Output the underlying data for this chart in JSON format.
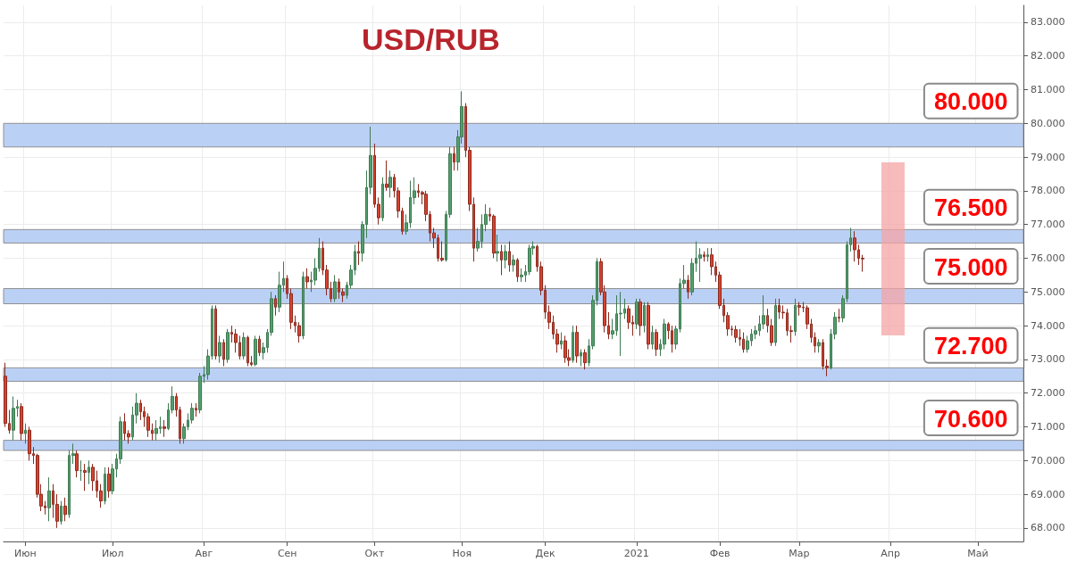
{
  "chart_data": {
    "type": "candlestick",
    "title": "USD/RUB",
    "categories": [
      null,
      null,
      null,
      null,
      null,
      "Июн",
      null,
      null,
      null,
      null,
      null,
      null,
      null,
      null,
      null,
      null,
      null,
      null,
      null,
      null,
      null,
      null,
      null,
      null,
      null,
      null,
      null,
      "Июл",
      null,
      null,
      null,
      null,
      null,
      null,
      null,
      null,
      null,
      null,
      null,
      null,
      null,
      null,
      null,
      null,
      null,
      null,
      null,
      null,
      null,
      null,
      "Авг",
      null,
      null,
      null,
      null,
      null,
      null,
      null,
      null,
      null,
      null,
      null,
      null,
      null,
      null,
      null,
      null,
      null,
      null,
      null,
      null,
      "Сен",
      null,
      null,
      null,
      null,
      null,
      null,
      null,
      null,
      null,
      null,
      null,
      null,
      null,
      null,
      null,
      null,
      null,
      null,
      null,
      null,
      null,
      "Окт",
      null,
      null,
      null,
      null,
      null,
      null,
      null,
      null,
      null,
      null,
      null,
      null,
      null,
      null,
      null,
      null,
      null,
      null,
      null,
      null,
      null,
      "Ноя",
      null,
      null,
      null,
      null,
      null,
      null,
      null,
      null,
      null,
      null,
      null,
      null,
      null,
      null,
      null,
      null,
      null,
      null,
      null,
      null,
      "Дек",
      null,
      null,
      null,
      null,
      null,
      null,
      null,
      null,
      null,
      null,
      null,
      null,
      null,
      null,
      null,
      null,
      null,
      null,
      null,
      null,
      null,
      null,
      "2021",
      null,
      null,
      null,
      null,
      null,
      null,
      null,
      null,
      null,
      null,
      null,
      null,
      null,
      null,
      null,
      null,
      null,
      null,
      null,
      null,
      "Фев",
      null,
      null,
      null,
      null,
      null,
      null,
      null,
      null,
      null,
      null,
      null,
      null,
      null,
      null,
      null,
      null,
      null,
      null,
      null,
      "Мар",
      null,
      null,
      null,
      null,
      null,
      null,
      null,
      null,
      null,
      null,
      null,
      null,
      null,
      null,
      null,
      null,
      null,
      null,
      null,
      null,
      null,
      null,
      "Апр",
      null,
      null,
      null,
      null,
      null,
      null,
      null,
      null,
      null,
      null,
      null,
      null,
      null,
      null,
      null,
      null,
      null,
      null,
      null,
      null,
      null,
      "Май",
      null,
      null,
      null,
      null,
      null,
      null,
      null,
      null,
      null,
      null,
      null
    ],
    "ohlc": [
      [
        72.5,
        72.9,
        71.0,
        71.1
      ],
      [
        71.1,
        71.5,
        70.8,
        70.9
      ],
      [
        70.9,
        71.9,
        70.6,
        71.55
      ],
      [
        71.55,
        71.8,
        71.3,
        71.6
      ],
      [
        71.6,
        71.7,
        70.6,
        70.8
      ],
      [
        70.8,
        71.1,
        70.5,
        70.9
      ],
      [
        70.9,
        71.0,
        70.0,
        70.2
      ],
      [
        70.2,
        70.4,
        69.9,
        70.15
      ],
      [
        70.15,
        70.2,
        68.9,
        69.0
      ],
      [
        69.0,
        69.3,
        68.5,
        68.65
      ],
      [
        68.65,
        68.8,
        68.4,
        68.6
      ],
      [
        68.6,
        69.5,
        68.2,
        69.1
      ],
      [
        69.1,
        69.3,
        68.3,
        68.7
      ],
      [
        68.7,
        69.0,
        68.0,
        68.2
      ],
      [
        68.2,
        68.8,
        68.1,
        68.65
      ],
      [
        68.65,
        68.9,
        68.2,
        68.4
      ],
      [
        68.4,
        70.3,
        68.3,
        70.15
      ],
      [
        70.15,
        70.5,
        69.9,
        70.2
      ],
      [
        70.2,
        70.3,
        69.5,
        69.7
      ],
      [
        69.7,
        70.0,
        69.4,
        69.7
      ],
      [
        69.7,
        69.9,
        69.1,
        69.65
      ],
      [
        69.65,
        70.0,
        69.3,
        69.8
      ],
      [
        69.8,
        69.9,
        69.1,
        69.4
      ],
      [
        69.4,
        69.7,
        68.9,
        69.1
      ],
      [
        69.1,
        69.3,
        68.6,
        68.8
      ],
      [
        68.8,
        69.8,
        68.7,
        69.6
      ],
      [
        69.6,
        69.8,
        68.9,
        69.1
      ],
      [
        69.1,
        69.9,
        69.0,
        69.75
      ],
      [
        69.75,
        70.2,
        69.5,
        70.05
      ],
      [
        70.05,
        71.3,
        69.9,
        71.15
      ],
      [
        71.15,
        71.4,
        70.6,
        70.8
      ],
      [
        70.8,
        70.9,
        70.5,
        70.7
      ],
      [
        70.7,
        71.6,
        70.6,
        71.35
      ],
      [
        71.35,
        72.0,
        71.1,
        71.7
      ],
      [
        71.7,
        71.8,
        71.2,
        71.45
      ],
      [
        71.45,
        71.6,
        71.0,
        71.3
      ],
      [
        71.3,
        71.4,
        70.7,
        70.9
      ],
      [
        70.9,
        71.1,
        70.6,
        70.8
      ],
      [
        70.8,
        71.2,
        70.6,
        70.95
      ],
      [
        70.95,
        71.3,
        70.8,
        71.0
      ],
      [
        71.0,
        71.2,
        70.7,
        70.95
      ],
      [
        70.95,
        71.7,
        70.9,
        71.5
      ],
      [
        71.5,
        72.2,
        71.4,
        71.9
      ],
      [
        71.9,
        72.0,
        71.3,
        71.5
      ],
      [
        71.5,
        71.6,
        70.5,
        70.65
      ],
      [
        70.65,
        71.1,
        70.5,
        71.0
      ],
      [
        71.0,
        71.4,
        70.9,
        71.2
      ],
      [
        71.2,
        71.7,
        71.1,
        71.55
      ],
      [
        71.55,
        71.7,
        71.3,
        71.5
      ],
      [
        71.5,
        72.6,
        71.4,
        72.5
      ],
      [
        72.5,
        72.8,
        72.3,
        72.55
      ],
      [
        72.55,
        73.3,
        72.4,
        73.1
      ],
      [
        73.1,
        74.6,
        73.0,
        74.5
      ],
      [
        74.5,
        74.6,
        73.0,
        73.1
      ],
      [
        73.1,
        73.7,
        72.9,
        73.5
      ],
      [
        73.5,
        73.6,
        72.8,
        73.0
      ],
      [
        73.0,
        73.9,
        72.9,
        73.8
      ],
      [
        73.8,
        74.0,
        73.5,
        73.75
      ],
      [
        73.75,
        73.9,
        73.2,
        73.5
      ],
      [
        73.5,
        73.7,
        73.0,
        73.1
      ],
      [
        73.1,
        73.8,
        73.0,
        73.65
      ],
      [
        73.65,
        73.7,
        72.8,
        72.9
      ],
      [
        72.9,
        73.1,
        72.8,
        72.85
      ],
      [
        72.85,
        73.7,
        72.8,
        73.6
      ],
      [
        73.6,
        73.7,
        73.1,
        73.2
      ],
      [
        73.2,
        73.5,
        73.0,
        73.35
      ],
      [
        73.35,
        73.9,
        73.2,
        73.8
      ],
      [
        73.8,
        75.0,
        73.7,
        74.8
      ],
      [
        74.8,
        74.9,
        74.3,
        74.55
      ],
      [
        74.55,
        75.6,
        74.4,
        75.2
      ],
      [
        75.2,
        75.9,
        75.0,
        75.4
      ],
      [
        75.4,
        75.5,
        74.8,
        74.95
      ],
      [
        74.95,
        75.1,
        73.9,
        74.1
      ],
      [
        74.1,
        74.3,
        73.8,
        74.0
      ],
      [
        74.0,
        74.1,
        73.5,
        73.7
      ],
      [
        73.7,
        75.6,
        73.6,
        75.45
      ],
      [
        75.45,
        75.7,
        75.1,
        75.3
      ],
      [
        75.3,
        75.6,
        75.0,
        75.35
      ],
      [
        75.35,
        76.0,
        75.2,
        75.7
      ],
      [
        75.7,
        76.6,
        75.6,
        76.3
      ],
      [
        76.3,
        76.5,
        75.5,
        75.65
      ],
      [
        75.65,
        75.8,
        74.9,
        75.1
      ],
      [
        75.1,
        75.3,
        74.7,
        74.8
      ],
      [
        74.8,
        75.5,
        74.7,
        75.3
      ],
      [
        75.3,
        75.4,
        74.8,
        75.0
      ],
      [
        75.0,
        75.1,
        74.7,
        74.9
      ],
      [
        74.9,
        75.3,
        74.8,
        75.2
      ],
      [
        75.2,
        75.8,
        75.1,
        75.65
      ],
      [
        75.65,
        76.4,
        75.5,
        76.2
      ],
      [
        76.2,
        76.5,
        75.8,
        76.15
      ],
      [
        76.15,
        77.1,
        75.9,
        77.0
      ],
      [
        77.0,
        78.6,
        76.6,
        78.1
      ],
      [
        78.1,
        79.9,
        77.9,
        79.05
      ],
      [
        79.05,
        79.4,
        77.5,
        77.6
      ],
      [
        77.6,
        77.8,
        77.0,
        77.2
      ],
      [
        77.2,
        78.4,
        77.1,
        78.2
      ],
      [
        78.2,
        78.9,
        78.0,
        78.1
      ],
      [
        78.1,
        78.6,
        77.8,
        78.4
      ],
      [
        78.4,
        78.5,
        77.8,
        78.0
      ],
      [
        78.0,
        78.1,
        77.2,
        77.4
      ],
      [
        77.4,
        77.5,
        76.7,
        76.8
      ],
      [
        76.8,
        77.3,
        76.7,
        77.05
      ],
      [
        77.05,
        78.3,
        76.9,
        77.8
      ],
      [
        77.8,
        78.4,
        77.6,
        78.0
      ],
      [
        78.0,
        78.2,
        77.8,
        77.95
      ],
      [
        77.95,
        78.0,
        77.6,
        77.9
      ],
      [
        77.9,
        78.0,
        77.1,
        77.3
      ],
      [
        77.3,
        77.4,
        76.5,
        76.75
      ],
      [
        76.75,
        76.9,
        76.3,
        76.6
      ],
      [
        76.6,
        76.7,
        75.9,
        76.0
      ],
      [
        76.0,
        76.5,
        75.9,
        75.95
      ],
      [
        75.95,
        77.4,
        75.9,
        77.3
      ],
      [
        77.3,
        79.3,
        77.2,
        79.1
      ],
      [
        79.1,
        79.3,
        78.6,
        78.85
      ],
      [
        78.85,
        79.8,
        78.6,
        79.6
      ],
      [
        79.6,
        80.95,
        79.4,
        80.5
      ],
      [
        80.5,
        80.6,
        79.0,
        79.2
      ],
      [
        79.2,
        79.3,
        77.4,
        77.6
      ],
      [
        77.6,
        77.8,
        75.9,
        76.3
      ],
      [
        76.3,
        76.9,
        76.2,
        76.5
      ],
      [
        76.5,
        77.3,
        76.3,
        77.0
      ],
      [
        77.0,
        77.6,
        76.8,
        77.3
      ],
      [
        77.3,
        77.5,
        77.1,
        77.25
      ],
      [
        77.25,
        77.3,
        76.0,
        76.15
      ],
      [
        76.15,
        76.7,
        75.9,
        76.2
      ],
      [
        76.2,
        76.4,
        75.5,
        75.95
      ],
      [
        75.95,
        76.4,
        75.7,
        76.2
      ],
      [
        76.2,
        76.5,
        75.6,
        75.8
      ],
      [
        75.8,
        76.1,
        75.6,
        75.95
      ],
      [
        75.95,
        76.0,
        75.3,
        75.45
      ],
      [
        75.45,
        75.7,
        75.3,
        75.5
      ],
      [
        75.5,
        75.8,
        75.3,
        75.6
      ],
      [
        75.6,
        76.4,
        75.5,
        76.3
      ],
      [
        76.3,
        76.5,
        76.1,
        76.35
      ],
      [
        76.35,
        76.4,
        75.6,
        75.75
      ],
      [
        75.75,
        75.9,
        74.9,
        75.05
      ],
      [
        75.05,
        75.2,
        74.2,
        74.4
      ],
      [
        74.4,
        74.6,
        73.9,
        74.1
      ],
      [
        74.1,
        74.3,
        73.6,
        73.75
      ],
      [
        73.75,
        73.9,
        73.2,
        73.45
      ],
      [
        73.45,
        73.8,
        73.3,
        73.55
      ],
      [
        73.55,
        73.7,
        72.9,
        73.05
      ],
      [
        73.05,
        73.3,
        72.8,
        72.97
      ],
      [
        72.97,
        74.0,
        72.9,
        73.8
      ],
      [
        73.8,
        74.0,
        72.9,
        73.1
      ],
      [
        73.1,
        73.3,
        72.8,
        73.2
      ],
      [
        73.2,
        73.3,
        72.7,
        72.9
      ],
      [
        72.9,
        73.6,
        72.8,
        73.4
      ],
      [
        73.4,
        74.9,
        73.3,
        74.75
      ],
      [
        74.75,
        76.0,
        74.6,
        75.9
      ],
      [
        75.9,
        76.0,
        74.9,
        75.0
      ],
      [
        75.0,
        75.2,
        73.8,
        74.0
      ],
      [
        74.0,
        74.4,
        73.6,
        73.75
      ],
      [
        73.75,
        74.2,
        73.6,
        73.85
      ],
      [
        73.85,
        74.9,
        73.7,
        74.35
      ],
      [
        74.35,
        75.0,
        73.1,
        74.37
      ],
      [
        74.37,
        74.8,
        74.2,
        74.5
      ],
      [
        74.5,
        74.6,
        73.9,
        74.1
      ],
      [
        74.1,
        74.3,
        73.7,
        74.05
      ],
      [
        74.05,
        74.8,
        73.9,
        74.7
      ],
      [
        74.7,
        74.8,
        73.7,
        74.0
      ],
      [
        74.0,
        74.7,
        73.8,
        74.6
      ],
      [
        74.6,
        74.7,
        73.3,
        73.45
      ],
      [
        73.45,
        74.0,
        73.3,
        73.8
      ],
      [
        73.8,
        73.9,
        73.1,
        73.3
      ],
      [
        73.3,
        73.6,
        73.1,
        73.45
      ],
      [
        73.45,
        74.2,
        73.3,
        74.05
      ],
      [
        74.05,
        74.1,
        73.6,
        73.85
      ],
      [
        73.85,
        74.0,
        73.2,
        73.45
      ],
      [
        73.45,
        74.0,
        73.3,
        73.9
      ],
      [
        73.9,
        75.4,
        73.8,
        75.25
      ],
      [
        75.25,
        75.8,
        75.1,
        75.35
      ],
      [
        75.35,
        75.5,
        74.8,
        75.0
      ],
      [
        75.0,
        76.0,
        74.9,
        75.85
      ],
      [
        75.85,
        76.5,
        75.6,
        76.0
      ],
      [
        76.0,
        76.3,
        75.3,
        76.1
      ],
      [
        76.1,
        76.2,
        75.9,
        76.05
      ],
      [
        76.05,
        76.3,
        75.9,
        76.1
      ],
      [
        76.1,
        76.3,
        75.5,
        75.75
      ],
      [
        75.75,
        75.9,
        75.3,
        75.5
      ],
      [
        75.5,
        75.6,
        74.5,
        74.6
      ],
      [
        74.6,
        74.8,
        74.1,
        74.3
      ],
      [
        74.3,
        74.4,
        73.7,
        73.9
      ],
      [
        73.9,
        74.0,
        73.7,
        73.88
      ],
      [
        73.88,
        74.0,
        73.5,
        73.65
      ],
      [
        73.65,
        73.9,
        73.4,
        73.6
      ],
      [
        73.6,
        73.8,
        73.2,
        73.3
      ],
      [
        73.3,
        73.7,
        73.2,
        73.55
      ],
      [
        73.55,
        73.9,
        73.4,
        73.75
      ],
      [
        73.75,
        74.0,
        73.6,
        73.85
      ],
      [
        73.85,
        74.3,
        73.7,
        74.05
      ],
      [
        74.05,
        74.9,
        73.9,
        74.3
      ],
      [
        74.3,
        74.5,
        73.8,
        74.0
      ],
      [
        74.0,
        74.2,
        73.4,
        73.5
      ],
      [
        73.5,
        74.8,
        73.4,
        74.6
      ],
      [
        74.6,
        74.8,
        74.2,
        74.4
      ],
      [
        74.4,
        74.6,
        74.2,
        74.38
      ],
      [
        74.38,
        74.5,
        73.7,
        73.85
      ],
      [
        73.85,
        74.0,
        73.5,
        73.83
      ],
      [
        73.83,
        74.8,
        73.7,
        74.6
      ],
      [
        74.6,
        74.7,
        74.3,
        74.55
      ],
      [
        74.55,
        74.7,
        74.4,
        74.53
      ],
      [
        74.53,
        74.6,
        73.9,
        74.05
      ],
      [
        74.05,
        74.2,
        73.5,
        73.65
      ],
      [
        73.65,
        73.8,
        73.2,
        73.4
      ],
      [
        73.4,
        73.6,
        73.2,
        73.5
      ],
      [
        73.5,
        73.6,
        72.7,
        72.8
      ],
      [
        72.8,
        73.0,
        72.5,
        72.75
      ],
      [
        72.75,
        73.9,
        72.7,
        73.75
      ],
      [
        73.75,
        74.4,
        73.6,
        74.25
      ],
      [
        74.25,
        74.5,
        74.1,
        74.23
      ],
      [
        74.23,
        74.9,
        74.1,
        74.8
      ],
      [
        74.8,
        76.5,
        74.7,
        76.4
      ],
      [
        76.4,
        76.9,
        76.2,
        76.6
      ],
      [
        76.6,
        76.8,
        75.9,
        76.25
      ],
      [
        76.25,
        76.4,
        75.8,
        76.0
      ],
      [
        76.0,
        76.1,
        75.6,
        75.98
      ],
      null,
      null,
      null,
      null,
      null,
      null,
      null,
      null,
      null,
      null,
      null,
      null,
      null,
      null,
      null,
      null,
      null,
      null,
      null,
      null,
      null,
      null,
      null,
      null,
      null,
      null,
      null,
      null,
      null,
      null,
      null,
      null,
      null,
      null,
      null,
      null,
      null,
      null,
      null,
      null
    ],
    "ylim": [
      67.6,
      83.5
    ],
    "yticks": [
      {
        "value": 68,
        "label": "68.000"
      },
      {
        "value": 69,
        "label": "69.000"
      },
      {
        "value": 70,
        "label": "70.000"
      },
      {
        "value": 71,
        "label": "71.000"
      },
      {
        "value": 72,
        "label": "72.000"
      },
      {
        "value": 73,
        "label": "73.000"
      },
      {
        "value": 74,
        "label": "74.000"
      },
      {
        "value": 75,
        "label": "75.000"
      },
      {
        "value": 76,
        "label": "76.000"
      },
      {
        "value": 77,
        "label": "77.000"
      },
      {
        "value": 78,
        "label": "78.000"
      },
      {
        "value": 79,
        "label": "79.000"
      },
      {
        "value": 80,
        "label": "80.000"
      },
      {
        "value": 81,
        "label": "81.000"
      },
      {
        "value": 82,
        "label": "82.000"
      },
      {
        "value": 83,
        "label": "83.000"
      }
    ],
    "grid": true,
    "bands": [
      {
        "axis": "y",
        "from": 79.3,
        "to": 80.0,
        "label": "80.000",
        "color": "#b7cdf4"
      },
      {
        "axis": "y",
        "from": 76.45,
        "to": 76.85,
        "label": "76.500",
        "color": "#b7cdf4"
      },
      {
        "axis": "y",
        "from": 74.65,
        "to": 75.1,
        "label": "75.000",
        "color": "#b7cdf4"
      },
      {
        "axis": "y",
        "from": 72.35,
        "to": 72.75,
        "label": "72.700",
        "color": "#b7cdf4"
      },
      {
        "axis": "y",
        "from": 70.3,
        "to": 70.6,
        "label": "70.600",
        "color": "#b7cdf4"
      }
    ]
  }
}
